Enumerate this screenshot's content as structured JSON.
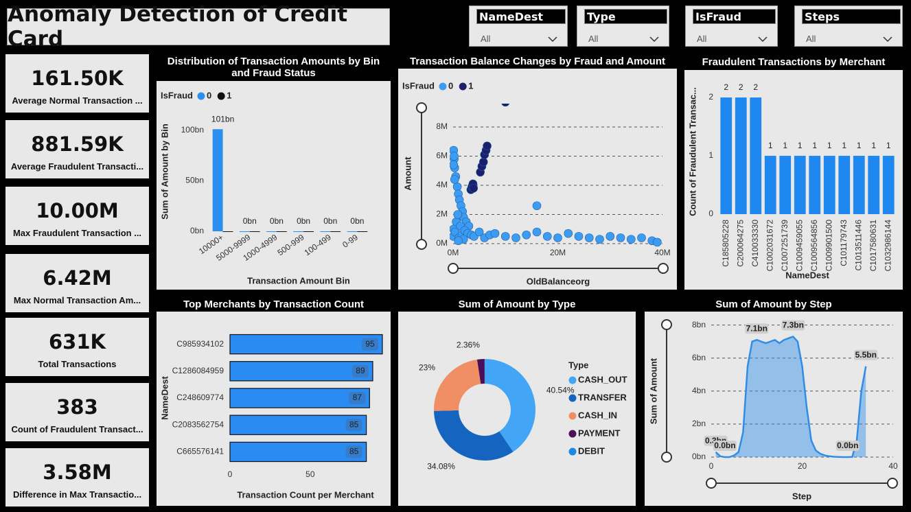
{
  "header": {
    "title": "Anomaly Detection of Credit Card"
  },
  "slicers": [
    {
      "label": "NameDest",
      "value": "All"
    },
    {
      "label": "Type",
      "value": "All"
    },
    {
      "label": "IsFraud",
      "value": "All"
    },
    {
      "label": "Steps",
      "value": "All"
    }
  ],
  "kpis": [
    {
      "value": "161.50K",
      "label": "Average Normal Transaction ..."
    },
    {
      "value": "881.59K",
      "label": "Average Fraudulent Transacti..."
    },
    {
      "value": "10.00M",
      "label": "Max Fraudulent Transaction ..."
    },
    {
      "value": "6.42M",
      "label": "Max Normal Transaction Am..."
    },
    {
      "value": "631K",
      "label": "Total Transactions"
    },
    {
      "value": "383",
      "label": "Count of Fraudulent Transact..."
    },
    {
      "value": "3.58M",
      "label": "Difference in Max Transactio..."
    }
  ],
  "chart_data": [
    {
      "type": "bar",
      "title": "Distribution of Transaction Amounts by Bin and Fraud Status",
      "legend_title": "IsFraud",
      "x_label": "Transaction Amount Bin",
      "y_label": "Sum of Amount by Bin",
      "categories": [
        "10000+",
        "5000-9999",
        "1000-4999",
        "500-999",
        "100-499",
        "0-99"
      ],
      "series": [
        {
          "name": "0",
          "color": "#2b8ff0",
          "values": [
            101,
            0,
            0,
            0,
            0,
            0
          ],
          "value_labels": [
            "101bn",
            "0bn",
            "0bn",
            "0bn",
            "0bn",
            "0bn"
          ]
        },
        {
          "name": "1",
          "color": "#111111",
          "values": [
            0,
            0,
            0,
            0,
            0,
            0
          ]
        }
      ],
      "ylim": [
        0,
        110
      ],
      "yticks": [
        {
          "value": 0,
          "label": "0bn"
        },
        {
          "value": 50,
          "label": "50bn"
        },
        {
          "value": 100,
          "label": "100bn"
        }
      ],
      "grid": false
    },
    {
      "type": "scatter",
      "title": "Transaction Balance Changes by Fraud and Amount",
      "legend_title": "IsFraud",
      "x_label": "OldBalanceorg",
      "y_label": "Amount",
      "series": [
        {
          "name": "0",
          "color": "#3d9cf2",
          "x": [
            0.1,
            0.2,
            0.3,
            0.5,
            0.8,
            1.0,
            1.2,
            1.5,
            1.8,
            2.0,
            2.5,
            3.0,
            0.05,
            0.1,
            0.4,
            0.6,
            0.9,
            1.1,
            1.4,
            1.7,
            2.2,
            2.8,
            3.5,
            4.0,
            5.0,
            6.0,
            7.0,
            8.0,
            10,
            12,
            14,
            16,
            18,
            20,
            22,
            24,
            26,
            28,
            30,
            32,
            34,
            36,
            38,
            39,
            0.2,
            0.3,
            0.1,
            16,
            2.0,
            1.0
          ],
          "y": [
            6.4,
            5.8,
            5.2,
            4.6,
            3.9,
            3.4,
            3.0,
            2.6,
            2.2,
            1.8,
            1.5,
            1.2,
            0.5,
            1.0,
            0.8,
            1.5,
            2.0,
            0.4,
            1.2,
            0.6,
            0.9,
            0.7,
            0.6,
            0.5,
            0.8,
            0.4,
            0.6,
            0.7,
            0.5,
            0.4,
            0.6,
            0.8,
            0.5,
            0.4,
            0.7,
            0.5,
            0.4,
            0.3,
            0.5,
            0.4,
            0.3,
            0.4,
            0.2,
            0.1,
            6.0,
            4.4,
            5.4,
            2.6,
            0.3,
            0.2
          ]
        },
        {
          "name": "1",
          "color": "#1c1f6b",
          "x": [
            3.4,
            3.6,
            3.8,
            3.9,
            5.2,
            5.5,
            5.8,
            6.0,
            6.3,
            6.5,
            10.0
          ],
          "y": [
            3.7,
            3.9,
            4.1,
            3.8,
            4.9,
            5.3,
            5.6,
            6.1,
            6.4,
            6.7,
            9.7
          ]
        }
      ],
      "xlim": [
        0,
        40
      ],
      "xticks": [
        {
          "value": 0,
          "label": "0M"
        },
        {
          "value": 20,
          "label": "20M"
        },
        {
          "value": 40,
          "label": "40M"
        }
      ],
      "ylim": [
        0,
        9.6
      ],
      "yticks": [
        {
          "value": 0,
          "label": "0M"
        },
        {
          "value": 2,
          "label": "2M"
        },
        {
          "value": 4,
          "label": "4M"
        },
        {
          "value": 6,
          "label": "6M"
        },
        {
          "value": 8,
          "label": "8M"
        }
      ],
      "grid": true
    },
    {
      "type": "bar",
      "title": "Fraudulent Transactions by Merchant",
      "x_label": "NameDest",
      "y_label": "Count of Fraudulent Transac...",
      "categories": [
        "C185805228",
        "C200064275",
        "C410033330",
        "C1002031672",
        "C1007251739",
        "C1009459055",
        "C1009564856",
        "C1009901500",
        "C101179743",
        "C1013511446",
        "C1017580631",
        "C1032986144"
      ],
      "values": [
        2,
        2,
        2,
        1,
        1,
        1,
        1,
        1,
        1,
        1,
        1,
        1
      ],
      "color": "#1e88f0",
      "ylim": [
        0,
        2.13
      ],
      "yticks": [
        0,
        1,
        2
      ],
      "grid": false
    },
    {
      "type": "barh",
      "title": "Top Merchants by Transaction Count",
      "x_label": "Transaction Count per Merchant",
      "y_label": "NameDest",
      "categories": [
        "C985934102",
        "C1286084959",
        "C248609774",
        "C2083562754",
        "C665576141"
      ],
      "values": [
        95,
        89,
        87,
        85,
        85
      ],
      "color": "#2a8cf2",
      "xlim": [
        0,
        98
      ],
      "xticks": [
        0,
        50
      ]
    },
    {
      "type": "pie",
      "title": "Sum of Amount by Type",
      "legend_title": "Type",
      "categories": [
        "CASH_OUT",
        "TRANSFER",
        "CASH_IN",
        "PAYMENT",
        "DEBIT"
      ],
      "values": [
        40.54,
        34.08,
        23,
        2.36,
        0.02
      ],
      "value_labels": [
        "40.54%",
        "34.08%",
        "23%",
        "2.36%",
        null
      ],
      "colors": [
        "#42a5f5",
        "#1565c0",
        "#ef8f63",
        "#4a0e5a",
        "#1e88e5"
      ]
    },
    {
      "type": "area",
      "title": "Sum of Amount by Step",
      "x_label": "Step",
      "y_label": "Sum of Amount",
      "x": [
        1,
        2,
        3,
        4,
        5,
        6,
        7,
        8,
        9,
        10,
        11,
        12,
        13,
        14,
        15,
        16,
        17,
        18,
        19,
        20,
        21,
        22,
        23,
        24,
        25,
        26,
        27,
        28,
        29,
        30,
        31,
        32,
        33,
        34
      ],
      "values": [
        0.3,
        0.05,
        0.0,
        0.0,
        0.1,
        0.3,
        1.5,
        5.5,
        7.0,
        7.1,
        7.0,
        6.9,
        7.0,
        7.1,
        6.9,
        7.1,
        7.2,
        7.3,
        7.0,
        5.5,
        3.0,
        1.0,
        0.4,
        0.2,
        0.1,
        0.05,
        0.02,
        0.01,
        0.0,
        0.0,
        0.01,
        1.0,
        4.0,
        5.5
      ],
      "value_labels": [
        "0.3bn",
        null,
        "0.0bn",
        null,
        null,
        null,
        null,
        null,
        null,
        "7.1bn",
        null,
        null,
        null,
        null,
        null,
        null,
        null,
        "7.3bn",
        null,
        null,
        null,
        null,
        null,
        null,
        null,
        null,
        null,
        null,
        null,
        "0.0bn",
        null,
        null,
        null,
        "5.5bn"
      ],
      "color": "#2f8de8",
      "xlim": [
        0,
        40
      ],
      "xticks": [
        0,
        20,
        40
      ],
      "ylim": [
        0,
        8.4
      ],
      "yticks": [
        {
          "value": 0,
          "label": "0bn"
        },
        {
          "value": 2,
          "label": "2bn"
        },
        {
          "value": 4,
          "label": "4bn"
        },
        {
          "value": 6,
          "label": "6bn"
        },
        {
          "value": 8,
          "label": "8bn"
        }
      ],
      "grid": true
    }
  ]
}
